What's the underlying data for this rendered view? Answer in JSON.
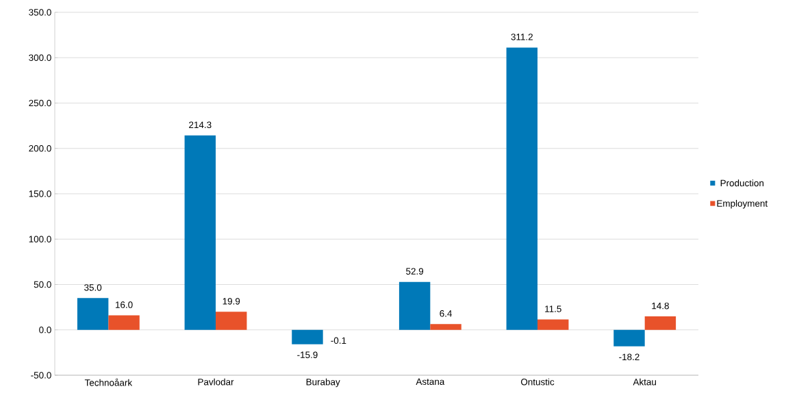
{
  "chart_data": {
    "type": "bar",
    "categories": [
      "Technoåark",
      "Pavlodar",
      "Burabay",
      "Astana",
      "Ontustic",
      "Aktau"
    ],
    "series": [
      {
        "name": "Production",
        "color": "#0079b8",
        "values": [
          35.0,
          214.3,
          -15.9,
          52.9,
          311.2,
          -18.2
        ],
        "value_labels": [
          "35.0",
          "214.3",
          "-15.9",
          "52.9",
          "311.2",
          "-18.2"
        ]
      },
      {
        "name": "Employment",
        "color": "#e8522a",
        "values": [
          16.0,
          19.9,
          -0.1,
          6.4,
          11.5,
          14.8
        ],
        "value_labels": [
          "16.0",
          "19.9",
          "-0.1",
          "6.4",
          "11.5",
          "14.8"
        ]
      }
    ],
    "ylim": [
      -50,
      350
    ],
    "yticks": [
      {
        "value": -50,
        "label": "-50.0"
      },
      {
        "value": 0,
        "label": "0.0"
      },
      {
        "value": 50,
        "label": "50.0"
      },
      {
        "value": 100,
        "label": "100.0"
      },
      {
        "value": 150,
        "label": "150.0"
      },
      {
        "value": 200,
        "label": "200.0"
      },
      {
        "value": 250,
        "label": "250.0"
      },
      {
        "value": 300,
        "label": "300.0"
      },
      {
        "value": 350,
        "label": "350.0"
      }
    ],
    "grid": "y",
    "legend": "right"
  }
}
